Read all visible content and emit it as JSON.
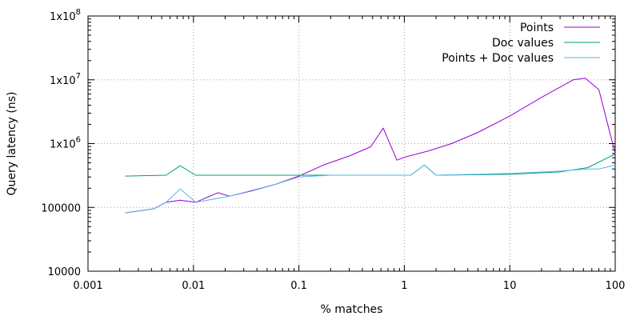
{
  "chart_data": {
    "type": "line",
    "xlabel": "% matches",
    "ylabel": "Query latency (ns)",
    "x_scale": "log",
    "y_scale": "log",
    "xlim": [
      0.001,
      100
    ],
    "ylim": [
      10000,
      100000000
    ],
    "grid": true,
    "legend_position": "top-right",
    "x_ticks": [
      {
        "value": 0.001,
        "label": "0.001"
      },
      {
        "value": 0.01,
        "label": "0.01"
      },
      {
        "value": 0.1,
        "label": "0.1"
      },
      {
        "value": 1,
        "label": "1"
      },
      {
        "value": 10,
        "label": "10"
      },
      {
        "value": 100,
        "label": "100"
      }
    ],
    "y_ticks": [
      {
        "value": 10000,
        "base": "10000",
        "exp": ""
      },
      {
        "value": 100000,
        "base": "100000",
        "exp": ""
      },
      {
        "value": 1000000,
        "base": "1x10",
        "exp": "6"
      },
      {
        "value": 10000000,
        "base": "1x10",
        "exp": "7"
      },
      {
        "value": 100000000,
        "base": "1x10",
        "exp": "8"
      }
    ],
    "series": [
      {
        "name": "Points",
        "color": "#9400d3",
        "points": [
          [
            0.00225,
            82000
          ],
          [
            0.0042,
            95000
          ],
          [
            0.0055,
            120000
          ],
          [
            0.0075,
            130000
          ],
          [
            0.0105,
            120000
          ],
          [
            0.017,
            170000
          ],
          [
            0.022,
            150000
          ],
          [
            0.035,
            180000
          ],
          [
            0.06,
            230000
          ],
          [
            0.1,
            310000
          ],
          [
            0.17,
            460000
          ],
          [
            0.3,
            640000
          ],
          [
            0.48,
            890000
          ],
          [
            0.63,
            1750000
          ],
          [
            0.85,
            550000
          ],
          [
            1.0,
            610000
          ],
          [
            1.7,
            770000
          ],
          [
            2.8,
            1000000
          ],
          [
            5.0,
            1500000
          ],
          [
            10.0,
            2700000
          ],
          [
            20.0,
            5300000
          ],
          [
            40.0,
            10000000
          ],
          [
            52.0,
            10600000
          ],
          [
            70.0,
            7000000
          ],
          [
            100.0,
            700000
          ]
        ]
      },
      {
        "name": "Doc values",
        "color": "#009e73",
        "points": [
          [
            0.00225,
            310000
          ],
          [
            0.0055,
            320000
          ],
          [
            0.0075,
            450000
          ],
          [
            0.0105,
            320000
          ],
          [
            0.05,
            320000
          ],
          [
            0.2,
            320000
          ],
          [
            1.0,
            320000
          ],
          [
            1.15,
            320000
          ],
          [
            1.55,
            460000
          ],
          [
            2.0,
            320000
          ],
          [
            10.0,
            330000
          ],
          [
            30.0,
            360000
          ],
          [
            55.0,
            420000
          ],
          [
            100.0,
            690000
          ]
        ]
      },
      {
        "name": "Points + Doc values",
        "color": "#56b4e9",
        "points": [
          [
            0.00225,
            82000
          ],
          [
            0.0042,
            95000
          ],
          [
            0.0055,
            120000
          ],
          [
            0.0075,
            195000
          ],
          [
            0.0105,
            120000
          ],
          [
            0.022,
            150000
          ],
          [
            0.06,
            230000
          ],
          [
            0.1,
            300000
          ],
          [
            0.2,
            320000
          ],
          [
            1.0,
            320000
          ],
          [
            1.15,
            320000
          ],
          [
            1.55,
            460000
          ],
          [
            2.0,
            320000
          ],
          [
            10.0,
            340000
          ],
          [
            30.0,
            370000
          ],
          [
            55.0,
            400000
          ],
          [
            70.0,
            400000
          ],
          [
            100.0,
            460000
          ]
        ]
      }
    ]
  }
}
